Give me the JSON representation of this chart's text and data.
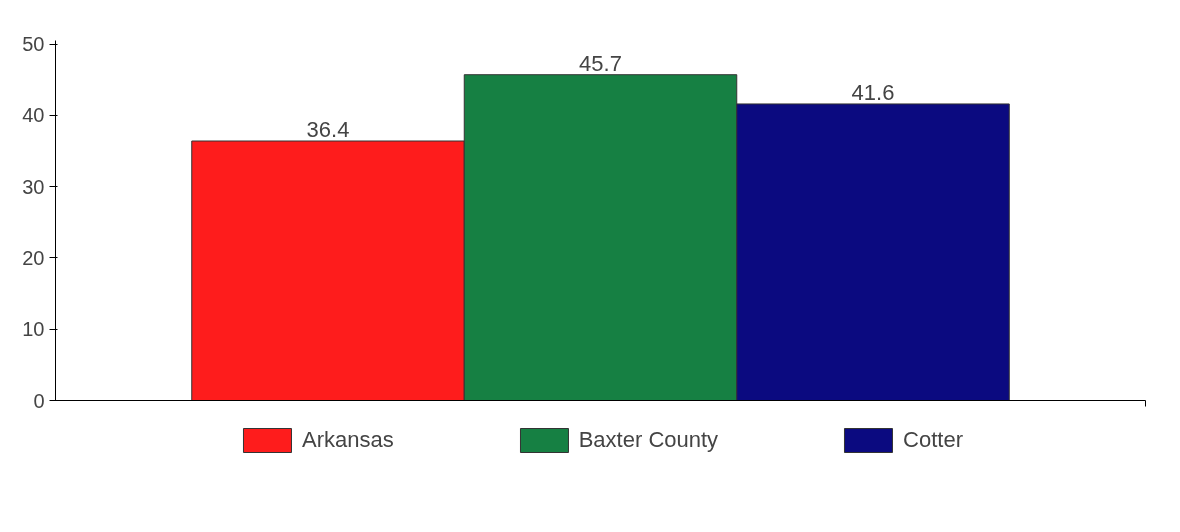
{
  "chart_data": {
    "type": "bar",
    "categories": [
      null
    ],
    "series": [
      {
        "name": "Arkansas",
        "color": "#fe1c1c",
        "values": [
          36.4
        ]
      },
      {
        "name": "Baxter County",
        "color": "#168043",
        "values": [
          45.7
        ]
      },
      {
        "name": "Cotter",
        "color": "#0b0a80",
        "values": [
          41.6
        ]
      }
    ],
    "ylim": [
      0,
      50.5
    ],
    "yticks": [
      0,
      10,
      20,
      30,
      40,
      50
    ],
    "grid": false,
    "legend": "bottom",
    "data_labels": true,
    "tick_labels": "y"
  }
}
